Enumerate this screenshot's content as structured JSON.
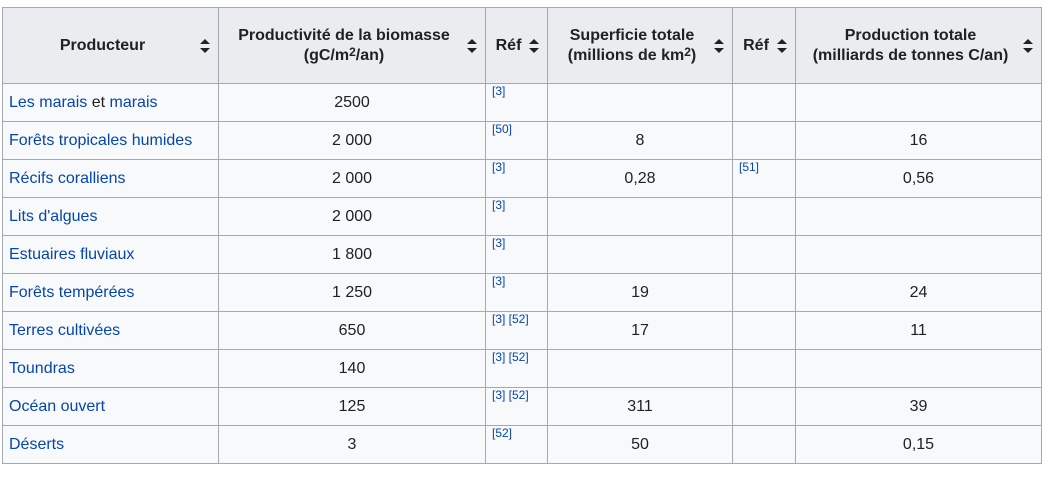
{
  "headers": {
    "producer": "Producteur",
    "biomass_line1": "Productivité de la biomasse",
    "biomass_line2a": "(gC/m",
    "biomass_sup": "2",
    "biomass_line2b": "/an)",
    "ref1": "Réf",
    "area_line1": "Superficie totale",
    "area_line2a": "(millions de km",
    "area_sup": "2",
    "area_line2b": ")",
    "ref2": "Réf",
    "prod_line1": "Production totale",
    "prod_line2": "(milliards de tonnes C/an)"
  },
  "rows": [
    {
      "producer_a": "Les marais",
      "producer_mid": " et ",
      "producer_b": "marais",
      "biomass": "2500",
      "ref1": "[3]",
      "area": "",
      "ref2": "",
      "prod": ""
    },
    {
      "producer": "Forêts tropicales humides",
      "biomass": "2 000",
      "ref1": "[50]",
      "area": "8",
      "ref2": "",
      "prod": "16"
    },
    {
      "producer": "Récifs coralliens",
      "biomass": "2 000",
      "ref1": "[3]",
      "area": "0,28",
      "ref2": "[51]",
      "prod": "0,56"
    },
    {
      "producer": "Lits d'algues",
      "biomass": "2 000",
      "ref1": "[3]",
      "area": "",
      "ref2": "",
      "prod": ""
    },
    {
      "producer": "Estuaires fluviaux",
      "biomass": "1 800",
      "ref1": "[3]",
      "area": "",
      "ref2": "",
      "prod": ""
    },
    {
      "producer": "Forêts tempérées",
      "biomass": "1 250",
      "ref1": "[3]",
      "area": "19",
      "ref2": "",
      "prod": "24"
    },
    {
      "producer": "Terres cultivées",
      "biomass": "650",
      "ref1": "[3] [52]",
      "area": "17",
      "ref2": "",
      "prod": "11"
    },
    {
      "producer": "Toundras",
      "biomass": "140",
      "ref1": "[3] [52]",
      "area": "",
      "ref2": "",
      "prod": ""
    },
    {
      "producer": "Océan ouvert",
      "biomass": "125",
      "ref1": "[3] [52]",
      "area": "311",
      "ref2": "",
      "prod": "39"
    },
    {
      "producer": "Déserts",
      "biomass": "3",
      "ref1": "[52]",
      "area": "50",
      "ref2": "",
      "prod": "0,15"
    }
  ],
  "colors": {
    "link": "#0645ad",
    "header_bg": "#eaecf0",
    "cell_bg": "#f8f9fa",
    "border": "#a2a9b1"
  }
}
